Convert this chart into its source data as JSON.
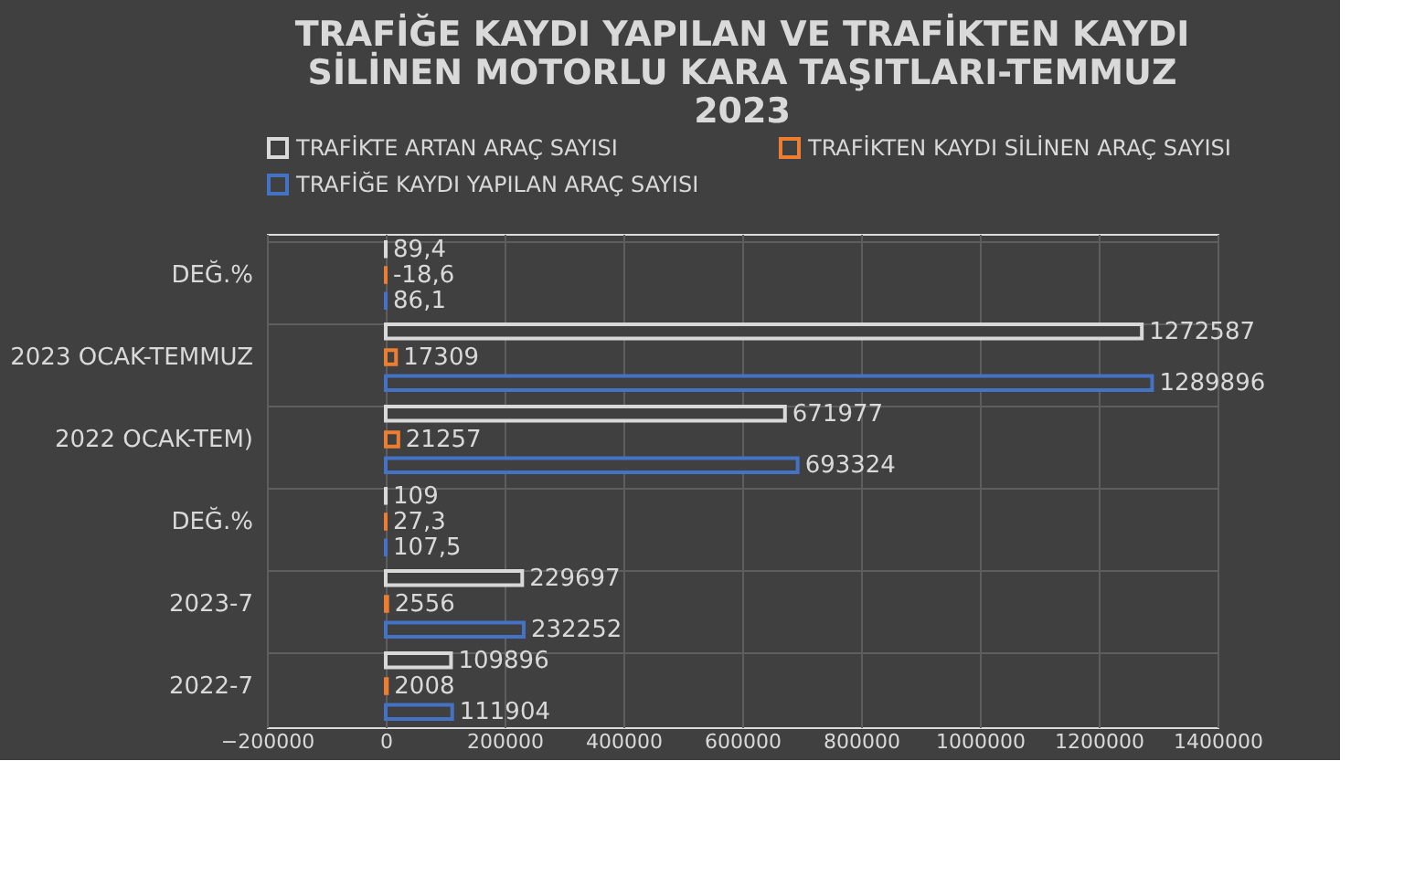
{
  "chart_data": {
    "type": "bar",
    "orientation": "horizontal",
    "title": "TRAFİĞE KAYDI YAPILAN VE TRAFİKTEN KAYDI SİLİNEN MOTORLU KARA TAŞITLARI-TEMMUZ 2023",
    "categories": [
      "DEĞ.%",
      "2023 OCAK-TEMMUZ",
      "2022 OCAK-TEM)",
      "DEĞ.%",
      "2023-7",
      "2022-7"
    ],
    "series": [
      {
        "name": "TRAFİKTE ARTAN ARAÇ SAYISI",
        "color": "#d9d9d9",
        "values": [
          89.4,
          1272587,
          671977,
          109,
          229697,
          109896
        ],
        "value_labels": [
          "89,4",
          "1272587",
          "671977",
          "109",
          "229697",
          "109896"
        ]
      },
      {
        "name": "TRAFİKTEN KAYDI SİLİNEN ARAÇ SAYISI",
        "color": "#ed7d31",
        "values": [
          -18.6,
          17309,
          21257,
          27.3,
          2556,
          2008
        ],
        "value_labels": [
          "-18,6",
          "17309",
          "21257",
          "27,3",
          "2556",
          "2008"
        ]
      },
      {
        "name": "TRAFİĞE KAYDI YAPILAN ARAÇ SAYISI",
        "color": "#4472c4",
        "values": [
          86.1,
          1289896,
          693324,
          107.5,
          232252,
          111904
        ],
        "value_labels": [
          "86,1",
          "1289896",
          "693324",
          "107,5",
          "232252",
          "111904"
        ]
      }
    ],
    "xlim": [
      -200000,
      1400000
    ],
    "xticks": [
      -200000,
      0,
      200000,
      400000,
      600000,
      800000,
      1000000,
      1200000,
      1400000
    ],
    "grid": true,
    "legend": "top"
  }
}
